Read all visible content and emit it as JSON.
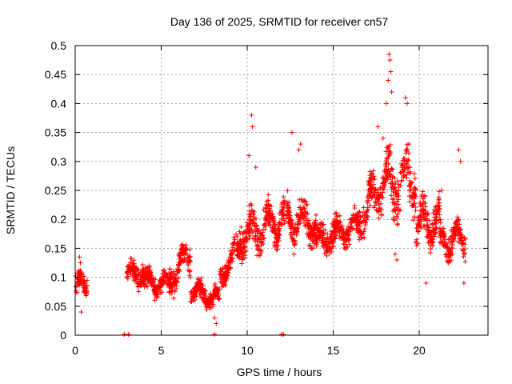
{
  "chart_data": {
    "type": "scatter",
    "title": "Day 136 of 2025, SRMTID for receiver cn57",
    "xlabel": "GPS time / hours",
    "ylabel": "SRMTID / TECUs",
    "xlim": [
      0,
      24
    ],
    "ylim": [
      0,
      0.5
    ],
    "xticks": [
      "0",
      "5",
      "10",
      "15",
      "20"
    ],
    "yticks": [
      "0",
      "0.05",
      "0.1",
      "0.15",
      "0.2",
      "0.25",
      "0.3",
      "0.35",
      "0.4",
      "0.45",
      "0.5"
    ],
    "grid": true,
    "marker": "+",
    "color": "#ff0000",
    "segments": [
      {
        "start": 0.0,
        "end": 0.7,
        "base": [
          0.08,
          0.09
        ],
        "spread": 0.025
      },
      {
        "start": 3.0,
        "end": 4.0,
        "base": [
          0.1,
          0.11
        ],
        "spread": 0.025
      },
      {
        "start": 4.0,
        "end": 5.5,
        "base": [
          0.09,
          0.09
        ],
        "spread": 0.025
      },
      {
        "start": 5.5,
        "end": 6.7,
        "base": [
          0.1,
          0.14
        ],
        "spread": 0.03
      },
      {
        "start": 6.7,
        "end": 8.4,
        "base": [
          0.08,
          0.06
        ],
        "spread": 0.02
      },
      {
        "start": 8.4,
        "end": 9.5,
        "base": [
          0.1,
          0.15
        ],
        "spread": 0.025
      },
      {
        "start": 9.5,
        "end": 12.0,
        "base": [
          0.17,
          0.2
        ],
        "spread": 0.04
      },
      {
        "start": 12.0,
        "end": 14.0,
        "base": [
          0.2,
          0.19
        ],
        "spread": 0.04
      },
      {
        "start": 14.0,
        "end": 16.5,
        "base": [
          0.16,
          0.19
        ],
        "spread": 0.03
      },
      {
        "start": 16.5,
        "end": 17.8,
        "base": [
          0.2,
          0.26
        ],
        "spread": 0.04
      },
      {
        "start": 17.8,
        "end": 19.8,
        "base": [
          0.26,
          0.27
        ],
        "spread": 0.06
      },
      {
        "start": 19.8,
        "end": 21.2,
        "base": [
          0.19,
          0.2
        ],
        "spread": 0.04
      },
      {
        "start": 21.2,
        "end": 22.7,
        "base": [
          0.16,
          0.17
        ],
        "spread": 0.035
      }
    ],
    "spikes": [
      [
        0.25,
        0.135
      ],
      [
        0.3,
        0.125
      ],
      [
        0.35,
        0.04
      ],
      [
        10.1,
        0.31
      ],
      [
        10.25,
        0.38
      ],
      [
        10.3,
        0.36
      ],
      [
        10.5,
        0.29
      ],
      [
        12.6,
        0.35
      ],
      [
        13.1,
        0.33
      ],
      [
        13.0,
        0.32
      ],
      [
        17.6,
        0.36
      ],
      [
        17.9,
        0.34
      ],
      [
        18.1,
        0.4
      ],
      [
        18.2,
        0.44
      ],
      [
        18.25,
        0.485
      ],
      [
        18.3,
        0.475
      ],
      [
        18.35,
        0.455
      ],
      [
        18.4,
        0.42
      ],
      [
        18.6,
        0.14
      ],
      [
        18.7,
        0.13
      ],
      [
        19.2,
        0.41
      ],
      [
        19.3,
        0.4
      ],
      [
        19.4,
        0.33
      ],
      [
        20.4,
        0.09
      ],
      [
        21.3,
        0.25
      ],
      [
        22.3,
        0.32
      ],
      [
        22.4,
        0.3
      ],
      [
        22.6,
        0.09
      ],
      [
        8.1,
        0.03
      ],
      [
        8.2,
        0.02
      ]
    ],
    "zero_points": [
      2.85,
      3.1,
      8.1,
      12.0,
      12.1
    ]
  }
}
